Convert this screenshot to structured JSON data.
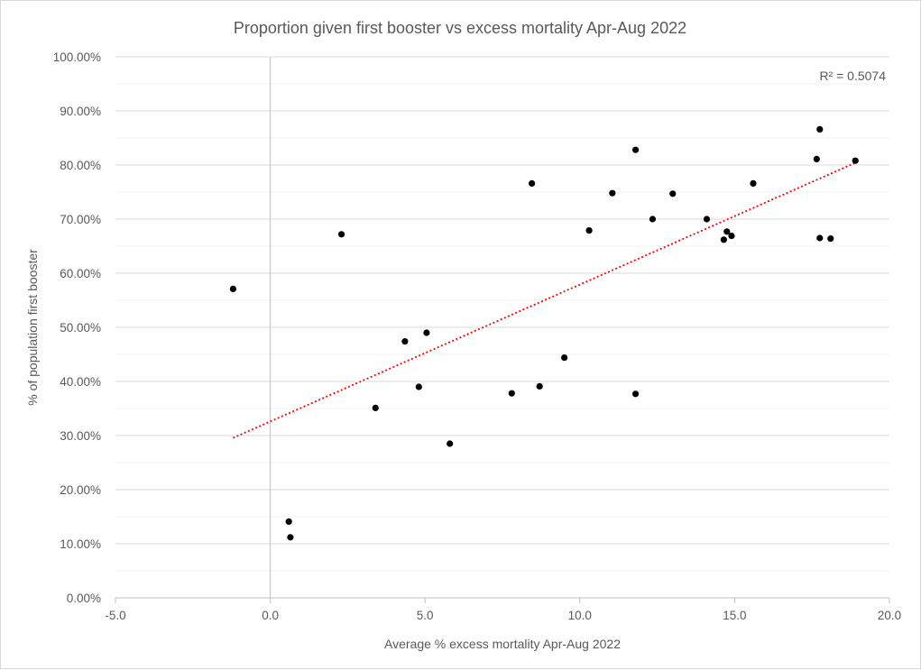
{
  "chart_data": {
    "type": "scatter",
    "title": "Proportion given first booster vs excess mortality Apr-Aug 2022",
    "xlabel": "Average % excess mortality Apr-Aug 2022",
    "ylabel": "% of population first booster",
    "xlim": [
      -5,
      20
    ],
    "ylim": [
      0,
      1
    ],
    "x_ticks": [
      -5,
      0,
      5,
      10,
      15,
      20
    ],
    "x_tick_labels": [
      "-5.0",
      "0.0",
      "5.0",
      "10.0",
      "15.0",
      "20.0"
    ],
    "y_ticks": [
      0,
      0.1,
      0.2,
      0.3,
      0.4,
      0.5,
      0.6,
      0.7,
      0.8,
      0.9,
      1.0
    ],
    "y_tick_labels": [
      "0.00%",
      "10.00%",
      "20.00%",
      "30.00%",
      "40.00%",
      "50.00%",
      "60.00%",
      "70.00%",
      "80.00%",
      "90.00%",
      "100.00%"
    ],
    "grid": true,
    "minor_grid": true,
    "point_color": "#000000",
    "trendline_color": "#ff0000",
    "r_squared_label": "R² = 0.5074",
    "trendline": {
      "x_start": -1.2,
      "x_end": 18.9,
      "slope": 0.0253,
      "intercept": 0.326
    },
    "points": [
      {
        "x": -1.2,
        "y": 0.571
      },
      {
        "x": 0.6,
        "y": 0.141
      },
      {
        "x": 0.65,
        "y": 0.112
      },
      {
        "x": 2.3,
        "y": 0.672
      },
      {
        "x": 3.4,
        "y": 0.351
      },
      {
        "x": 4.35,
        "y": 0.474
      },
      {
        "x": 4.8,
        "y": 0.39
      },
      {
        "x": 5.05,
        "y": 0.49
      },
      {
        "x": 5.8,
        "y": 0.285
      },
      {
        "x": 7.8,
        "y": 0.378
      },
      {
        "x": 8.45,
        "y": 0.766
      },
      {
        "x": 8.7,
        "y": 0.391
      },
      {
        "x": 9.5,
        "y": 0.444
      },
      {
        "x": 10.3,
        "y": 0.679
      },
      {
        "x": 11.05,
        "y": 0.748
      },
      {
        "x": 11.8,
        "y": 0.828
      },
      {
        "x": 11.8,
        "y": 0.377
      },
      {
        "x": 12.35,
        "y": 0.7
      },
      {
        "x": 13.0,
        "y": 0.747
      },
      {
        "x": 14.1,
        "y": 0.7
      },
      {
        "x": 14.65,
        "y": 0.662
      },
      {
        "x": 14.75,
        "y": 0.677
      },
      {
        "x": 14.9,
        "y": 0.669
      },
      {
        "x": 15.6,
        "y": 0.766
      },
      {
        "x": 17.65,
        "y": 0.811
      },
      {
        "x": 17.75,
        "y": 0.866
      },
      {
        "x": 17.75,
        "y": 0.665
      },
      {
        "x": 18.1,
        "y": 0.664
      },
      {
        "x": 18.9,
        "y": 0.808
      }
    ]
  }
}
